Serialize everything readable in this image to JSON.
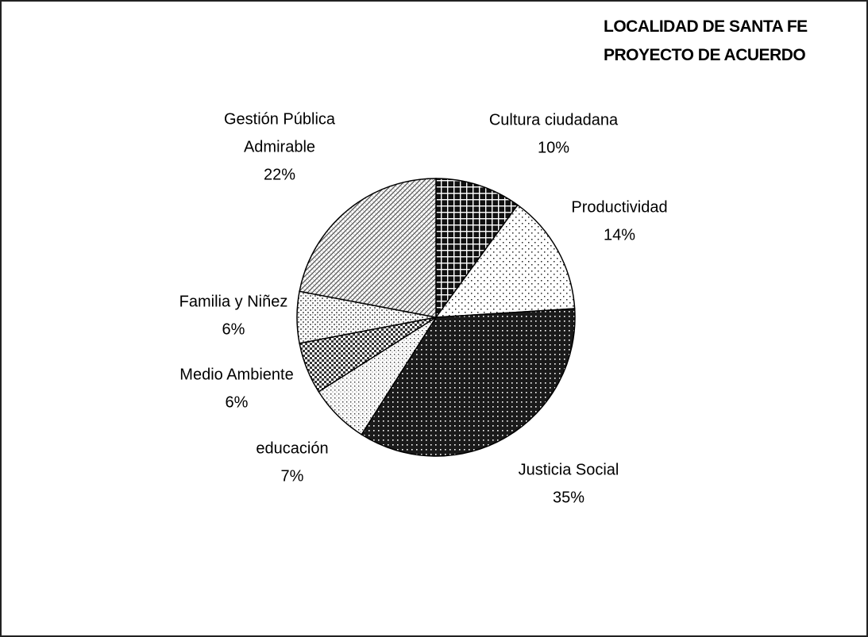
{
  "chart_data": {
    "type": "pie",
    "title": "LOCALIDAD DE SANTA FE",
    "subtitle": "PROYECTO DE ACUERDO",
    "start_angle_deg": 0,
    "direction": "clockwise",
    "slices": [
      {
        "label_lines": [
          "Cultura ciudadana"
        ],
        "value": 10,
        "value_label": "10%",
        "pattern": "dark-grid"
      },
      {
        "label_lines": [
          "Productividad"
        ],
        "value": 14,
        "value_label": "14%",
        "pattern": "sparse-dots"
      },
      {
        "label_lines": [
          "Justicia Social"
        ],
        "value": 35,
        "value_label": "35%",
        "pattern": "dense-grid"
      },
      {
        "label_lines": [
          "educación"
        ],
        "value": 7,
        "value_label": "7%",
        "pattern": "fine-dots"
      },
      {
        "label_lines": [
          "Medio Ambiente"
        ],
        "value": 6,
        "value_label": "6%",
        "pattern": "checker"
      },
      {
        "label_lines": [
          "Familia y Niñez"
        ],
        "value": 6,
        "value_label": "6%",
        "pattern": "light-check"
      },
      {
        "label_lines": [
          "Gestión Pública",
          "Admirable"
        ],
        "value": 22,
        "value_label": "22%",
        "pattern": "diag-hatch"
      }
    ]
  }
}
